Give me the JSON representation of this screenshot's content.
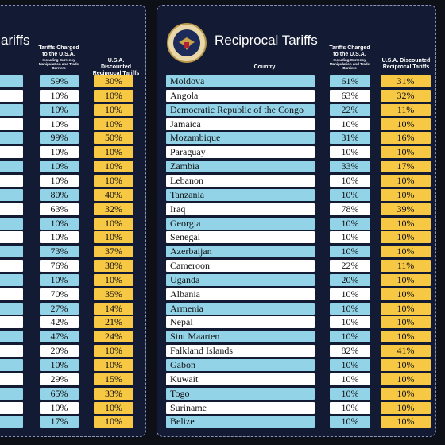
{
  "left_panel": {
    "title": "ariffs",
    "header": {
      "charged": "Tariffs Charged to the U.S.A.",
      "charged_note": "Including Currency Manipulation and Trade Barriers",
      "discounted": "U.S.A. Discounted Reciprocal Tariffs"
    },
    "rows": [
      [
        "59%",
        "30%"
      ],
      [
        "10%",
        "10%"
      ],
      [
        "10%",
        "10%"
      ],
      [
        "10%",
        "10%"
      ],
      [
        "99%",
        "50%"
      ],
      [
        "10%",
        "10%"
      ],
      [
        "10%",
        "10%"
      ],
      [
        "10%",
        "10%"
      ],
      [
        "80%",
        "40%"
      ],
      [
        "63%",
        "32%"
      ],
      [
        "10%",
        "10%"
      ],
      [
        "10%",
        "10%"
      ],
      [
        "73%",
        "37%"
      ],
      [
        "76%",
        "38%"
      ],
      [
        "10%",
        "10%"
      ],
      [
        "70%",
        "35%"
      ],
      [
        "27%",
        "14%"
      ],
      [
        "42%",
        "21%"
      ],
      [
        "47%",
        "24%"
      ],
      [
        "20%",
        "10%"
      ],
      [
        "10%",
        "10%"
      ],
      [
        "29%",
        "15%"
      ],
      [
        "65%",
        "33%"
      ],
      [
        "10%",
        "10%"
      ],
      [
        "17%",
        "10%"
      ]
    ]
  },
  "right_panel": {
    "title": "Reciprocal Tariffs",
    "header": {
      "country": "Country",
      "charged": "Tariffs Charged to the U.S.A.",
      "charged_note": "Including Currency Manipulation and Trade Barriers",
      "discounted": "U.S.A. Discounted Reciprocal Tariffs"
    },
    "rows": [
      [
        "Moldova",
        "61%",
        "31%"
      ],
      [
        "Angola",
        "63%",
        "32%"
      ],
      [
        "Democratic Republic of the Congo",
        "22%",
        "11%"
      ],
      [
        "Jamaica",
        "10%",
        "10%"
      ],
      [
        "Mozambique",
        "31%",
        "16%"
      ],
      [
        "Paraguay",
        "10%",
        "10%"
      ],
      [
        "Zambia",
        "33%",
        "17%"
      ],
      [
        "Lebanon",
        "10%",
        "10%"
      ],
      [
        "Tanzania",
        "10%",
        "10%"
      ],
      [
        "Iraq",
        "78%",
        "39%"
      ],
      [
        "Georgia",
        "10%",
        "10%"
      ],
      [
        "Senegal",
        "10%",
        "10%"
      ],
      [
        "Azerbaijan",
        "10%",
        "10%"
      ],
      [
        "Cameroon",
        "22%",
        "11%"
      ],
      [
        "Uganda",
        "20%",
        "10%"
      ],
      [
        "Albania",
        "10%",
        "10%"
      ],
      [
        "Armenia",
        "10%",
        "10%"
      ],
      [
        "Nepal",
        "10%",
        "10%"
      ],
      [
        "Sint Maarten",
        "10%",
        "10%"
      ],
      [
        "Falkland Islands",
        "82%",
        "41%"
      ],
      [
        "Gabon",
        "10%",
        "10%"
      ],
      [
        "Kuwait",
        "10%",
        "10%"
      ],
      [
        "Togo",
        "10%",
        "10%"
      ],
      [
        "Suriname",
        "10%",
        "10%"
      ],
      [
        "Belize",
        "10%",
        "10%"
      ]
    ]
  }
}
